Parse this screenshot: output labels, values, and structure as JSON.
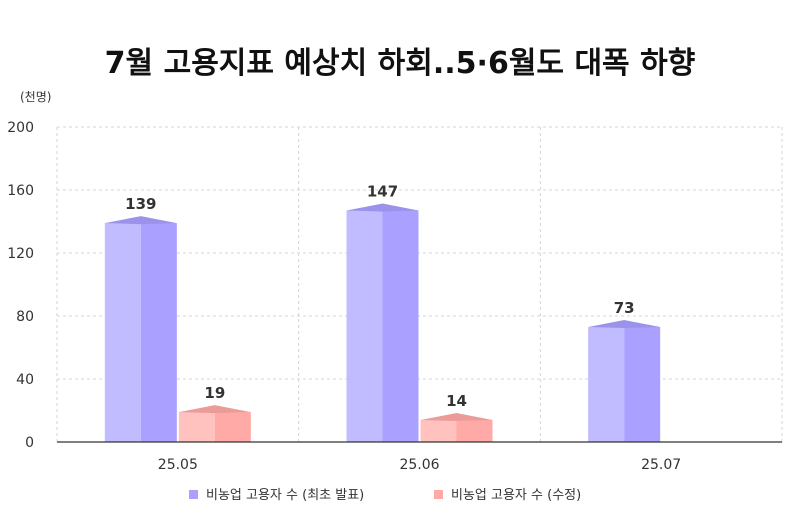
{
  "chart_data": {
    "type": "bar",
    "title": "7월 고용지표 예상치 하회..5·6월도 대폭 하향",
    "unit_label": "(천명)",
    "categories": [
      "25.05",
      "25.06",
      "25.07"
    ],
    "ylim": [
      0,
      200
    ],
    "yticks": [
      "0",
      "40",
      "80",
      "120",
      "160",
      "200"
    ],
    "ytick_values": [
      0,
      40,
      80,
      120,
      160,
      200
    ],
    "grid": true,
    "legend_position": "bottom",
    "series": [
      {
        "name": "비농업 고용자 수 (최초 발표)",
        "values": [
          139,
          147,
          73
        ],
        "labels": [
          "139",
          "147",
          "73"
        ],
        "color": "#a9a0ff"
      },
      {
        "name": "비농업 고용자 수 (수정)",
        "values": [
          19,
          14,
          null
        ],
        "labels": [
          "19",
          "14",
          ""
        ],
        "color": "#ffaaa6"
      }
    ]
  }
}
